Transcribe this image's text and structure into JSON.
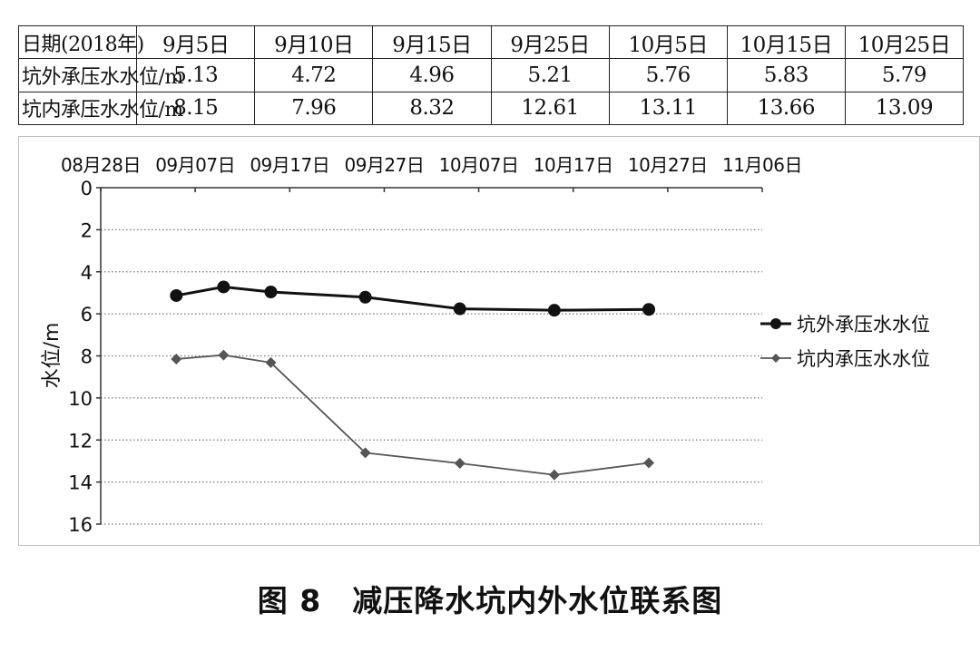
{
  "table": {
    "header_label": "日期(2018年)",
    "dates": [
      "9月5日",
      "9月10日",
      "9月15日",
      "9月25日",
      "10月5日",
      "10月15日",
      "10月25日"
    ],
    "rows": [
      {
        "label": "坑外承压水水位/m",
        "values": [
          "5.13",
          "4.72",
          "4.96",
          "5.21",
          "5.76",
          "5.83",
          "5.79"
        ]
      },
      {
        "label": "坑内承压水水位/m",
        "values": [
          "8.15",
          "7.96",
          "8.32",
          "12.61",
          "13.11",
          "13.66",
          "13.09"
        ]
      }
    ]
  },
  "chart_data": {
    "type": "line",
    "x_tick_labels": [
      "08月28日",
      "09月07日",
      "09月17日",
      "09月27日",
      "10月07日",
      "10月17日",
      "10月27日",
      "11月06日"
    ],
    "x_ticks": [
      "2018-08-28",
      "2018-09-07",
      "2018-09-17",
      "2018-09-27",
      "2018-10-07",
      "2018-10-17",
      "2018-10-27",
      "2018-11-06"
    ],
    "x": [
      "2018-09-05",
      "2018-09-10",
      "2018-09-15",
      "2018-09-25",
      "2018-10-05",
      "2018-10-15",
      "2018-10-25"
    ],
    "xlim": [
      "2018-08-28",
      "2018-11-06"
    ],
    "ylabel": "水位/m",
    "ylim": [
      0,
      16
    ],
    "y_ticks": [
      0,
      2,
      4,
      6,
      8,
      10,
      12,
      14,
      16
    ],
    "y_inverted": true,
    "x_axis_position": "top",
    "grid": "horizontal-dotted",
    "legend_position": "right",
    "series": [
      {
        "name": "坑外承压水水位",
        "values": [
          5.13,
          4.72,
          4.96,
          5.21,
          5.76,
          5.83,
          5.79
        ],
        "color": "#111111",
        "marker": "circle"
      },
      {
        "name": "坑内承压水水位",
        "values": [
          8.15,
          7.96,
          8.32,
          12.61,
          13.11,
          13.66,
          13.09
        ],
        "color": "#555555",
        "marker": "diamond"
      }
    ]
  },
  "caption": "图 8　减压降水坑内外水位联系图"
}
